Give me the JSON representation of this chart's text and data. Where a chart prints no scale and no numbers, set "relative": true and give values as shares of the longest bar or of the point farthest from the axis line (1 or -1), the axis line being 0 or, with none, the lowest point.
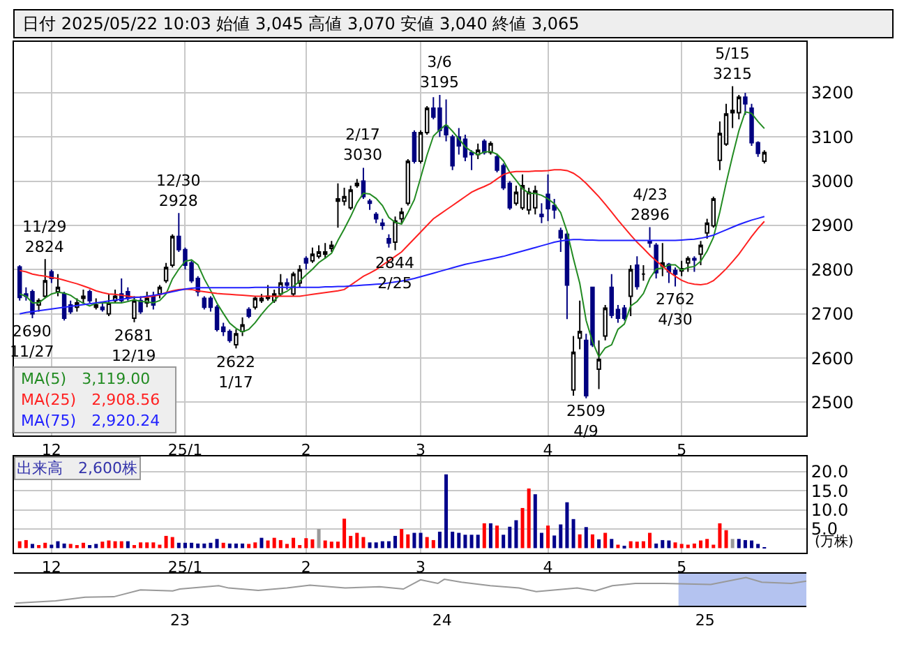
{
  "chart_data": [
    {
      "type": "candlestick",
      "title": "日付 2025/05/22 10:03 始値 3,045 高値 3,070 安値 3,040 終値 3,065",
      "categories": [
        null,
        null,
        null,
        null,
        null,
        "12",
        null,
        null,
        null,
        null,
        null,
        null,
        null,
        null,
        null,
        null,
        null,
        null,
        null,
        null,
        null,
        null,
        null,
        null,
        null,
        null,
        "25/1",
        null,
        null,
        null,
        null,
        null,
        null,
        null,
        null,
        null,
        null,
        null,
        null,
        null,
        null,
        null,
        null,
        null,
        null,
        "2",
        null,
        null,
        null,
        null,
        null,
        null,
        null,
        null,
        null,
        null,
        null,
        null,
        null,
        null,
        null,
        null,
        null,
        "3",
        null,
        null,
        null,
        null,
        null,
        null,
        null,
        null,
        null,
        null,
        null,
        null,
        null,
        null,
        null,
        null,
        null,
        null,
        null,
        "4",
        null,
        null,
        null,
        null,
        null,
        null,
        null,
        null,
        null,
        null,
        null,
        null,
        null,
        null,
        null,
        null,
        null,
        null,
        null,
        null,
        "5",
        null,
        null,
        null,
        null,
        null,
        null,
        null,
        null,
        null,
        null,
        null,
        null,
        null
      ],
      "ohlc": [
        [
          2806,
          2810,
          2730,
          2737
        ],
        [
          2745,
          2760,
          2730,
          2740
        ],
        [
          2750,
          2755,
          2690,
          2700
        ],
        [
          2720,
          2735,
          2705,
          2730
        ],
        [
          2740,
          2824,
          2735,
          2775
        ],
        [
          2795,
          2800,
          2770,
          2780
        ],
        [
          2750,
          2790,
          2740,
          2760
        ],
        [
          2745,
          2750,
          2685,
          2690
        ],
        [
          2720,
          2730,
          2700,
          2705
        ],
        [
          2715,
          2735,
          2705,
          2725
        ],
        [
          2735,
          2755,
          2725,
          2740
        ],
        [
          2750,
          2755,
          2725,
          2730
        ],
        [
          2715,
          2735,
          2710,
          2720
        ],
        [
          2715,
          2725,
          2705,
          2710
        ],
        [
          2700,
          2745,
          2695,
          2725
        ],
        [
          2730,
          2755,
          2725,
          2740
        ],
        [
          2745,
          2780,
          2725,
          2730
        ],
        [
          2750,
          2760,
          2730,
          2735
        ],
        [
          2690,
          2740,
          2681,
          2730
        ],
        [
          2730,
          2740,
          2700,
          2705
        ],
        [
          2725,
          2750,
          2715,
          2735
        ],
        [
          2740,
          2750,
          2710,
          2720
        ],
        [
          2745,
          2765,
          2735,
          2760
        ],
        [
          2775,
          2815,
          2770,
          2805
        ],
        [
          2810,
          2880,
          2805,
          2875
        ],
        [
          2875,
          2928,
          2840,
          2845
        ],
        [
          2845,
          2850,
          2800,
          2810
        ],
        [
          2815,
          2820,
          2770,
          2775
        ],
        [
          2780,
          2785,
          2740,
          2750
        ],
        [
          2735,
          2740,
          2710,
          2715
        ],
        [
          2735,
          2740,
          2705,
          2715
        ],
        [
          2715,
          2720,
          2660,
          2665
        ],
        [
          2670,
          2680,
          2650,
          2660
        ],
        [
          2660,
          2665,
          2635,
          2640
        ],
        [
          2630,
          2665,
          2622,
          2655
        ],
        [
          2660,
          2692,
          2650,
          2675
        ],
        [
          2710,
          2715,
          2690,
          2695
        ],
        [
          2715,
          2740,
          2710,
          2735
        ],
        [
          2730,
          2745,
          2725,
          2735
        ],
        [
          2735,
          2765,
          2730,
          2740
        ],
        [
          2730,
          2755,
          2725,
          2745
        ],
        [
          2745,
          2790,
          2740,
          2770
        ],
        [
          2770,
          2780,
          2755,
          2765
        ],
        [
          2745,
          2795,
          2740,
          2790
        ],
        [
          2770,
          2810,
          2760,
          2800
        ],
        [
          2825,
          2830,
          2800,
          2815
        ],
        [
          2820,
          2850,
          2815,
          2835
        ],
        [
          2830,
          2855,
          2825,
          2840
        ],
        [
          2835,
          2860,
          2825,
          2840
        ],
        [
          2848,
          2865,
          2840,
          2855
        ],
        [
          2955,
          2995,
          2895,
          2960
        ],
        [
          2955,
          2985,
          2945,
          2965
        ],
        [
          2940,
          2990,
          2935,
          2980
        ],
        [
          2990,
          3005,
          2985,
          2995
        ],
        [
          3000,
          3030,
          2960,
          2965
        ],
        [
          2955,
          2960,
          2935,
          2950
        ],
        [
          2925,
          2930,
          2905,
          2915
        ],
        [
          2905,
          2915,
          2890,
          2900
        ],
        [
          2870,
          2880,
          2850,
          2860
        ],
        [
          2862,
          2920,
          2844,
          2910
        ],
        [
          2915,
          2940,
          2905,
          2930
        ],
        [
          2950,
          3050,
          2945,
          3045
        ],
        [
          3110,
          3115,
          3040,
          3045
        ],
        [
          3045,
          3115,
          3040,
          3110
        ],
        [
          3110,
          3170,
          3105,
          3165
        ],
        [
          3165,
          3190,
          3140,
          3145
        ],
        [
          3165,
          3195,
          3100,
          3115
        ],
        [
          3125,
          3185,
          3090,
          3105
        ],
        [
          3100,
          3105,
          3025,
          3035
        ],
        [
          3100,
          3120,
          3060,
          3080
        ],
        [
          3095,
          3105,
          3045,
          3055
        ],
        [
          3065,
          3070,
          3025,
          3060
        ],
        [
          3060,
          3085,
          3050,
          3070
        ],
        [
          3090,
          3095,
          3060,
          3065
        ],
        [
          3065,
          3090,
          3060,
          3085
        ],
        [
          3055,
          3060,
          3020,
          3025
        ],
        [
          3035,
          3040,
          2980,
          2985
        ],
        [
          2995,
          3000,
          2935,
          2940
        ],
        [
          2950,
          2990,
          2945,
          2975
        ],
        [
          2940,
          3015,
          2935,
          2990
        ],
        [
          2935,
          2985,
          2925,
          2975
        ],
        [
          2940,
          2990,
          2925,
          2978
        ],
        [
          2925,
          2950,
          2905,
          2920
        ],
        [
          2970,
          3015,
          2910,
          2938
        ],
        [
          2945,
          2960,
          2915,
          2935
        ],
        [
          2888,
          2895,
          2840,
          2872
        ],
        [
          2880,
          2885,
          2688,
          2765
        ],
        [
          2528,
          2650,
          2515,
          2613
        ],
        [
          2645,
          2730,
          2620,
          2660
        ],
        [
          2640,
          2655,
          2509,
          2515
        ],
        [
          2760,
          2760,
          2625,
          2630
        ],
        [
          2575,
          2640,
          2530,
          2597
        ],
        [
          2650,
          2720,
          2640,
          2713
        ],
        [
          2760,
          2790,
          2690,
          2697
        ],
        [
          2710,
          2720,
          2680,
          2690
        ],
        [
          2713,
          2720,
          2685,
          2690
        ],
        [
          2740,
          2810,
          2695,
          2800
        ],
        [
          2810,
          2830,
          2755,
          2762
        ],
        [
          2790,
          2810,
          2775,
          2790
        ],
        [
          2865,
          2896,
          2850,
          2860
        ],
        [
          2855,
          2860,
          2780,
          2793
        ],
        [
          2808,
          2860,
          2785,
          2815
        ],
        [
          2812,
          2815,
          2770,
          2795
        ],
        [
          2798,
          2805,
          2762,
          2790
        ],
        [
          2797,
          2820,
          2785,
          2802
        ],
        [
          2815,
          2830,
          2795,
          2825
        ],
        [
          2825,
          2830,
          2795,
          2822
        ],
        [
          2835,
          2865,
          2810,
          2855
        ],
        [
          2883,
          2915,
          2870,
          2905
        ],
        [
          2899,
          2965,
          2895,
          2960
        ],
        [
          3047,
          3135,
          3025,
          3108
        ],
        [
          3084,
          3175,
          3080,
          3152
        ],
        [
          3155,
          3215,
          3120,
          3160
        ],
        [
          3155,
          3195,
          3140,
          3190
        ],
        [
          3190,
          3200,
          3150,
          3175
        ],
        [
          3165,
          3175,
          3080,
          3087
        ],
        [
          3087,
          3090,
          3055,
          3063
        ],
        [
          3045,
          3070,
          3040,
          3065
        ]
      ],
      "series": [
        {
          "name": "MA(5)　3,119.00",
          "type": "line",
          "color": "#228b22",
          "values": [
            2745,
            2740,
            2725,
            2725,
            2736,
            2745,
            2749,
            2747,
            2742,
            2732,
            2724,
            2718,
            2724,
            2725,
            2725,
            2725,
            2725,
            2728,
            2732,
            2728,
            2727,
            2725,
            2730,
            2745,
            2779,
            2801,
            2819,
            2822,
            2811,
            2779,
            2753,
            2724,
            2701,
            2679,
            2667,
            2659,
            2665,
            2680,
            2699,
            2716,
            2730,
            2745,
            2751,
            2762,
            2774,
            2788,
            2801,
            2816,
            2826,
            2837,
            2866,
            2892,
            2920,
            2951,
            2973,
            2971,
            2961,
            2945,
            2918,
            2907,
            2903,
            2929,
            2958,
            3008,
            3059,
            3102,
            3116,
            3128,
            3113,
            3096,
            3078,
            3067,
            3060,
            3066,
            3067,
            3061,
            3046,
            3020,
            3002,
            2983,
            2973,
            2972,
            2968,
            2960,
            2949,
            2929,
            2886,
            2825,
            2769,
            2685,
            2637,
            2603,
            2623,
            2630,
            2665,
            2677,
            2718,
            2728,
            2746,
            2780,
            2801,
            2804,
            2811,
            2811,
            2799,
            2805,
            2807,
            2819,
            2842,
            2873,
            2930,
            2996,
            3057,
            3114,
            3157,
            3153,
            3135,
            3119
          ]
        },
        {
          "name": "MA(25)　2,908.56",
          "type": "line",
          "color": "#ff2020",
          "values": [
            2798,
            2795,
            2790,
            2787,
            2785,
            2782,
            2780,
            2776,
            2772,
            2768,
            2763,
            2758,
            2752,
            2748,
            2745,
            2744,
            2742,
            2740,
            2738,
            2738,
            2738,
            2740,
            2743,
            2748,
            2752,
            2755,
            2756,
            2755,
            2752,
            2750,
            2748,
            2746,
            2745,
            2744,
            2743,
            2742,
            2741,
            2740,
            2740,
            2740,
            2740,
            2740,
            2740,
            2740,
            2740,
            2742,
            2744,
            2746,
            2748,
            2750,
            2752,
            2755,
            2765,
            2775,
            2785,
            2792,
            2800,
            2810,
            2820,
            2830,
            2840,
            2855,
            2870,
            2885,
            2900,
            2915,
            2925,
            2935,
            2945,
            2955,
            2965,
            2975,
            2982,
            2988,
            2995,
            3005,
            3015,
            3020,
            3022,
            3022,
            3022,
            3023,
            3023,
            3024,
            3026,
            3026,
            3024,
            3018,
            3008,
            2995,
            2980,
            2965,
            2948,
            2930,
            2912,
            2895,
            2878,
            2862,
            2848,
            2833,
            2820,
            2808,
            2795,
            2785,
            2776,
            2770,
            2767,
            2766,
            2768,
            2775,
            2788,
            2802,
            2818,
            2835,
            2855,
            2875,
            2893,
            2909
          ]
        },
        {
          "name": "MA(75)　2,920.24",
          "type": "line",
          "color": "#2020ff",
          "values": [
            2700,
            2703,
            2705,
            2707,
            2709,
            2711,
            2713,
            2715,
            2717,
            2719,
            2721,
            2723,
            2725,
            2727,
            2729,
            2731,
            2733,
            2735,
            2737,
            2738,
            2740,
            2742,
            2744,
            2747,
            2750,
            2753,
            2756,
            2758,
            2759,
            2759,
            2759,
            2759,
            2759,
            2759,
            2759,
            2759,
            2759,
            2760,
            2760,
            2760,
            2760,
            2760,
            2760,
            2760,
            2760,
            2760,
            2760,
            2760,
            2761,
            2761,
            2762,
            2762,
            2763,
            2764,
            2765,
            2766,
            2767,
            2768,
            2770,
            2772,
            2774,
            2777,
            2780,
            2784,
            2788,
            2792,
            2796,
            2800,
            2804,
            2808,
            2812,
            2815,
            2818,
            2821,
            2824,
            2827,
            2830,
            2834,
            2838,
            2842,
            2846,
            2850,
            2854,
            2858,
            2862,
            2865,
            2867,
            2868,
            2868,
            2867,
            2867,
            2866,
            2866,
            2866,
            2866,
            2866,
            2866,
            2866,
            2866,
            2866,
            2866,
            2866,
            2866,
            2866,
            2867,
            2868,
            2869,
            2871,
            2874,
            2878,
            2884,
            2890,
            2896,
            2902,
            2907,
            2912,
            2916,
            2920
          ]
        }
      ],
      "ylim": [
        2425,
        3315
      ],
      "yticks": [
        2500,
        2600,
        2700,
        2800,
        2900,
        3000,
        3100,
        3200
      ],
      "grid": true,
      "legend": "bottom left",
      "annotations": [
        {
          "text": "11/29\n2824",
          "y": 2824
        },
        {
          "text": "2690\n11/27",
          "y": 2690
        },
        {
          "text": "2681\n12/19",
          "y": 2681
        },
        {
          "text": "12/30\n2928",
          "y": 2928
        },
        {
          "text": "2622\n1/17",
          "y": 2622
        },
        {
          "text": "2/17\n3030",
          "y": 3030
        },
        {
          "text": "2844\n2/25",
          "y": 2844
        },
        {
          "text": "3/6\n3195",
          "y": 3195
        },
        {
          "text": "2509\n4/9",
          "y": 2509
        },
        {
          "text": "4/23\n2896",
          "y": 2896
        },
        {
          "text": "2762\n4/30",
          "y": 2762
        },
        {
          "text": "5/15\n3215",
          "y": 3215
        }
      ]
    },
    {
      "type": "bar",
      "ylabel": "(万株)",
      "annotations": [
        "出来高　2,600株"
      ],
      "categories": [
        null,
        null,
        null,
        null,
        null,
        "12",
        null,
        null,
        null,
        null,
        null,
        null,
        null,
        null,
        null,
        null,
        null,
        null,
        null,
        null,
        null,
        null,
        null,
        null,
        null,
        null,
        "25/1",
        null,
        null,
        null,
        null,
        null,
        null,
        null,
        null,
        null,
        null,
        null,
        null,
        null,
        null,
        null,
        null,
        null,
        null,
        "2",
        null,
        null,
        null,
        null,
        null,
        null,
        null,
        null,
        null,
        null,
        null,
        null,
        null,
        null,
        null,
        null,
        null,
        "3",
        null,
        null,
        null,
        null,
        null,
        null,
        null,
        null,
        null,
        null,
        null,
        null,
        null,
        null,
        null,
        null,
        null,
        null,
        null,
        "4",
        null,
        null,
        null,
        null,
        null,
        null,
        null,
        null,
        null,
        null,
        null,
        null,
        null,
        null,
        null,
        null,
        null,
        null,
        null,
        null,
        "5",
        null,
        null,
        null,
        null,
        null,
        null,
        null,
        null,
        null,
        null,
        null,
        null,
        null
      ],
      "values": [
        1.8,
        2.1,
        1.1,
        0.8,
        1.4,
        0.9,
        1.8,
        1.2,
        1.1,
        0.8,
        1.4,
        0.8,
        1.1,
        1.7,
        2.0,
        1.8,
        1.8,
        1.8,
        0.8,
        1.5,
        1.5,
        1.5,
        0.9,
        3.2,
        2.9,
        1.4,
        1.4,
        1.4,
        1.2,
        1.2,
        1.4,
        2.4,
        1.4,
        1.2,
        1.2,
        1.2,
        1.1,
        1.5,
        2.7,
        2.0,
        2.7,
        2.1,
        1.1,
        2.7,
        0.8,
        2.6,
        2.3,
        5.0,
        2.0,
        1.7,
        1.7,
        7.7,
        3.2,
        4.0,
        2.9,
        1.5,
        1.5,
        1.8,
        1.8,
        3.2,
        5.0,
        3.6,
        4.0,
        4.0,
        2.9,
        2.1,
        4.3,
        19.3,
        4.3,
        4.0,
        3.5,
        3.5,
        3.5,
        6.5,
        6.5,
        5.9,
        3.5,
        5.6,
        7.3,
        10.5,
        15.6,
        14.1,
        4.0,
        5.9,
        3.3,
        6.2,
        12.0,
        7.6,
        3.6,
        5.5,
        3.6,
        2.3,
        4.0,
        2.4,
        0.9,
        0.5,
        1.8,
        1.7,
        1.8,
        4.0,
        1.2,
        2.1,
        2.0,
        1.5,
        1.1,
        0.9,
        1.2,
        2.0,
        2.4,
        0.9,
        6.5,
        4.7,
        2.4,
        2.4,
        2.1,
        2.0,
        1.1,
        0.26
      ],
      "colors": [
        "#ff0000",
        "#ff0000",
        "#00008b",
        "#ff0000",
        "#ff0000",
        "#00008b",
        "#00008b",
        "#00008b",
        "#ff0000",
        "#ff0000",
        "#ff0000",
        "#00008b",
        "#00008b",
        "#ff0000",
        "#ff0000",
        "#ff0000",
        "#ff0000",
        "#00008b",
        "#ff0000",
        "#ff0000",
        "#ff0000",
        "#ff0000",
        "#ff0000",
        "#ff0000",
        "#ff0000",
        "#00008b",
        "#00008b",
        "#00008b",
        "#00008b",
        "#00008b",
        "#00008b",
        "#00008b",
        "#ff0000",
        "#00008b",
        "#00008b",
        "#00008b",
        "#ff0000",
        "#ff0000",
        "#00008b",
        "#ff0000",
        "#ff0000",
        "#ff0000",
        "#ff0000",
        "#ff0000",
        "#ff0000",
        "#ff0000",
        "#ff0000",
        "#999999",
        "#ff0000",
        "#ff0000",
        "#ff0000",
        "#ff0000",
        "#ff0000",
        "#ff0000",
        "#ff0000",
        "#00008b",
        "#00008b",
        "#00008b",
        "#00008b",
        "#00008b",
        "#ff0000",
        "#ff0000",
        "#00008b",
        "#00008b",
        "#ff0000",
        "#ff0000",
        "#00008b",
        "#00008b",
        "#00008b",
        "#00008b",
        "#00008b",
        "#00008b",
        "#00008b",
        "#ff0000",
        "#00008b",
        "#ff0000",
        "#00008b",
        "#00008b",
        "#00008b",
        "#ff0000",
        "#ff0000",
        "#00008b",
        "#00008b",
        "#ff0000",
        "#00008b",
        "#00008b",
        "#00008b",
        "#00008b",
        "#ff0000",
        "#00008b",
        "#ff0000",
        "#00008b",
        "#ff0000",
        "#00008b",
        "#ff0000",
        "#00008b",
        "#ff0000",
        "#ff0000",
        "#ff0000",
        "#ff0000",
        "#00008b",
        "#00008b",
        "#00008b",
        "#ff0000",
        "#ff0000",
        "#ff0000",
        "#ff0000",
        "#ff0000",
        "#ff0000",
        "#ff0000",
        "#ff0000",
        "#ff0000",
        "#999999",
        "#00008b",
        "#00008b",
        "#00008b",
        "#00008b",
        "#00008b"
      ],
      "ylim": [
        -1.2,
        24
      ],
      "yticks": [
        {
          "value": 5,
          "label": "5.0"
        },
        {
          "value": 10,
          "label": "10.0"
        },
        {
          "value": 15,
          "label": "15.0"
        },
        {
          "value": 20,
          "label": "20.0"
        }
      ],
      "grid": true
    },
    {
      "type": "line",
      "relative": true,
      "color": "#999999",
      "x": [
        "2022-05-17",
        "2022-07-12",
        "2022-08-22",
        "2022-10-01",
        "2022-11-07",
        "2022-12-22",
        "2023-01-01",
        "2023-02-24",
        "2023-03-10",
        "2023-04-20",
        "2023-05-30",
        "2023-07-01",
        "2023-08-19",
        "2023-10-06",
        "2023-11-08",
        "2023-12-02",
        "2023-12-26",
        "2024-01-04",
        "2024-01-28",
        "2024-03-08",
        "2024-04-17",
        "2024-05-11",
        "2024-07-07",
        "2024-08-01",
        "2024-08-25",
        "2024-09-26",
        "2024-11-05",
        "2025-01-09",
        "2025-02-27",
        "2025-03-21",
        "2025-05-01",
        "2025-05-22"
      ],
      "values": [
        0,
        0.09,
        0.23,
        0.25,
        0.52,
        0.48,
        0.55,
        0.68,
        0.59,
        0.5,
        0.59,
        0.7,
        0.59,
        0.64,
        0.55,
        0.91,
        0.77,
        0.93,
        0.82,
        0.68,
        0.59,
        0.45,
        0.59,
        0.48,
        0.68,
        0.77,
        0.77,
        0.73,
        1,
        0.82,
        0.77,
        0.86
      ],
      "xlim": [
        "2022-05-15",
        "2025-05-22"
      ],
      "xticks": [
        {
          "value": "2023-01-01",
          "label": "23"
        },
        {
          "value": "2024-01-01",
          "label": "24"
        },
        {
          "value": "2025-01-01",
          "label": "25"
        }
      ],
      "bands": [
        {
          "axis": "x",
          "from": "2024-11-25",
          "to": "2025-05-22",
          "color": "#b4c3f0"
        }
      ]
    }
  ]
}
